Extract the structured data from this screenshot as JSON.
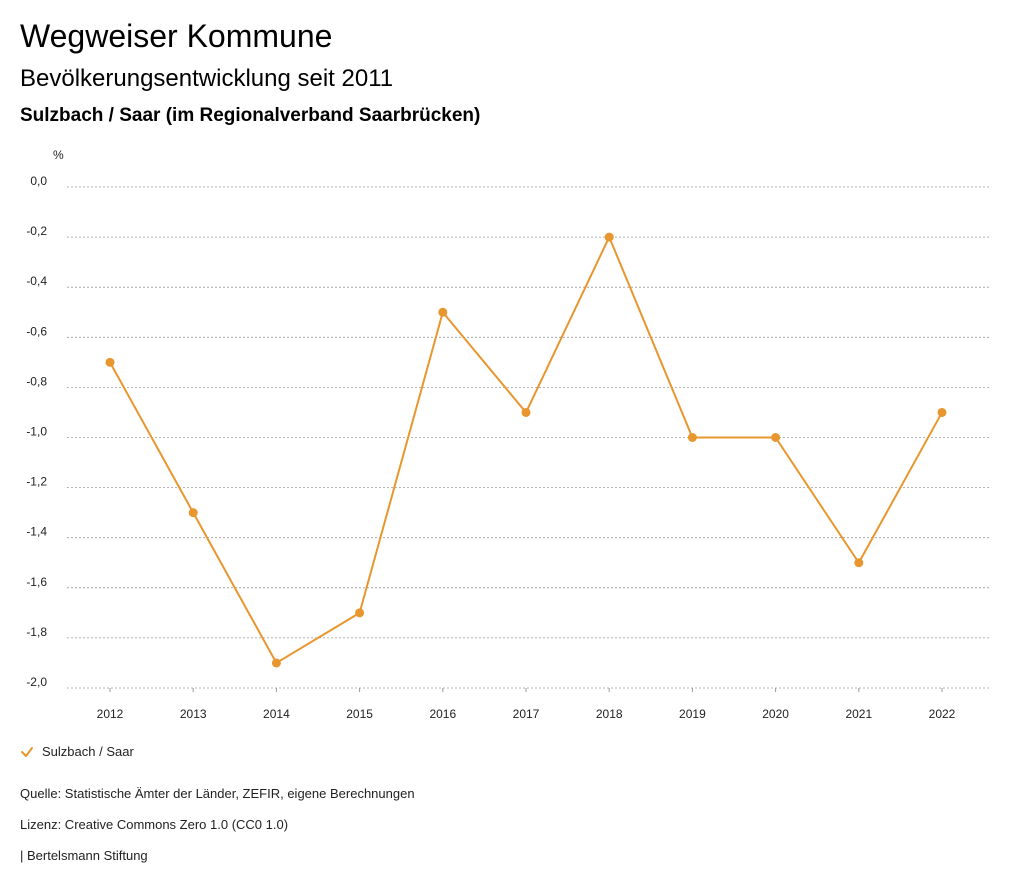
{
  "header": {
    "title": "Wegweiser Kommune",
    "subtitle": "Bevölkerungsentwicklung seit 2011",
    "region": "Sulzbach / Saar (im Regionalverband Saarbrücken)"
  },
  "chart_data": {
    "type": "line",
    "ylabel": "%",
    "ylim": [
      -2.0,
      0.0
    ],
    "yticks": [
      "0,0",
      "-0,2",
      "-0,4",
      "-0,6",
      "-0,8",
      "-1,0",
      "-1,2",
      "-1,4",
      "-1,6",
      "-1,8",
      "-2,0"
    ],
    "categories": [
      "2012",
      "2013",
      "2014",
      "2015",
      "2016",
      "2017",
      "2018",
      "2019",
      "2020",
      "2021",
      "2022"
    ],
    "series": [
      {
        "name": "Sulzbach / Saar",
        "color": "#e8962e",
        "values": [
          -0.7,
          -1.3,
          -1.9,
          -1.7,
          -0.5,
          -0.9,
          -0.2,
          -1.0,
          -1.0,
          -1.5,
          -0.9
        ]
      }
    ],
    "grid": true,
    "legend": "bottom-left"
  },
  "legend": {
    "icon": "check-icon",
    "label": "Sulzbach / Saar"
  },
  "footer": {
    "source": "Quelle: Statistische Ämter der Länder, ZEFIR, eigene Berechnungen",
    "license": "Lizenz: Creative Commons Zero 1.0 (CC0 1.0)",
    "publisher": "| Bertelsmann Stiftung"
  }
}
